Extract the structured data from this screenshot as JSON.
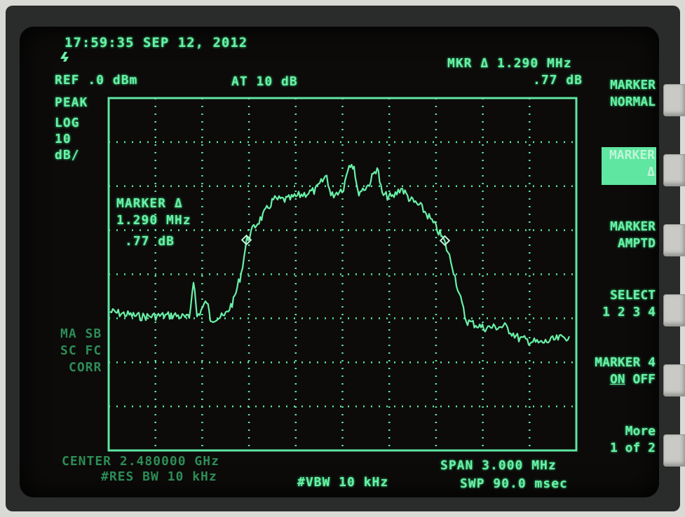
{
  "header": {
    "timestamp": "17:59:35 SEP 12, 2012",
    "ref_level": "REF .0 dBm",
    "attenuation": "AT 10 dB",
    "marker_readout_freq": "MKR Δ 1.290 MHz",
    "marker_readout_amp": ".77 dB"
  },
  "left_labels": {
    "detector": "PEAK",
    "scale_line1": "LOG",
    "scale_line2": "10",
    "scale_line3": "dB/",
    "faint_line1": "MA SB",
    "faint_line2": "SC FC",
    "faint_line3": "CORR"
  },
  "marker_annotation": {
    "title": "MARKER Δ",
    "freq": "1.290 MHz",
    "amp": ".77 dB"
  },
  "footer": {
    "center": "CENTER 2.480000 GHz",
    "rbw": "#RES BW 10 kHz",
    "vbw": "#VBW 10 kHz",
    "span": "SPAN 3.000 MHz",
    "sweep": "SWP 90.0 msec"
  },
  "softkeys": {
    "marker_normal_1": "MARKER",
    "marker_normal_2": "NORMAL",
    "marker_delta_1": "MARKER",
    "marker_delta_2": "Δ",
    "marker_amptd_1": "MARKER",
    "marker_amptd_2": "AMPTD",
    "select_1": "SELECT",
    "select_2": "1 2 3 4",
    "marker4_1": "MARKER 4",
    "marker4_on": "ON",
    "marker4_off": "OFF",
    "more_1": "More",
    "more_2": "1 of 2"
  },
  "colors": {
    "trace": "#69f0a6",
    "screen": "#0c0b0a",
    "bezel": "#2a2b2b"
  },
  "icons": {
    "logo": "hp-logo-icon"
  }
}
